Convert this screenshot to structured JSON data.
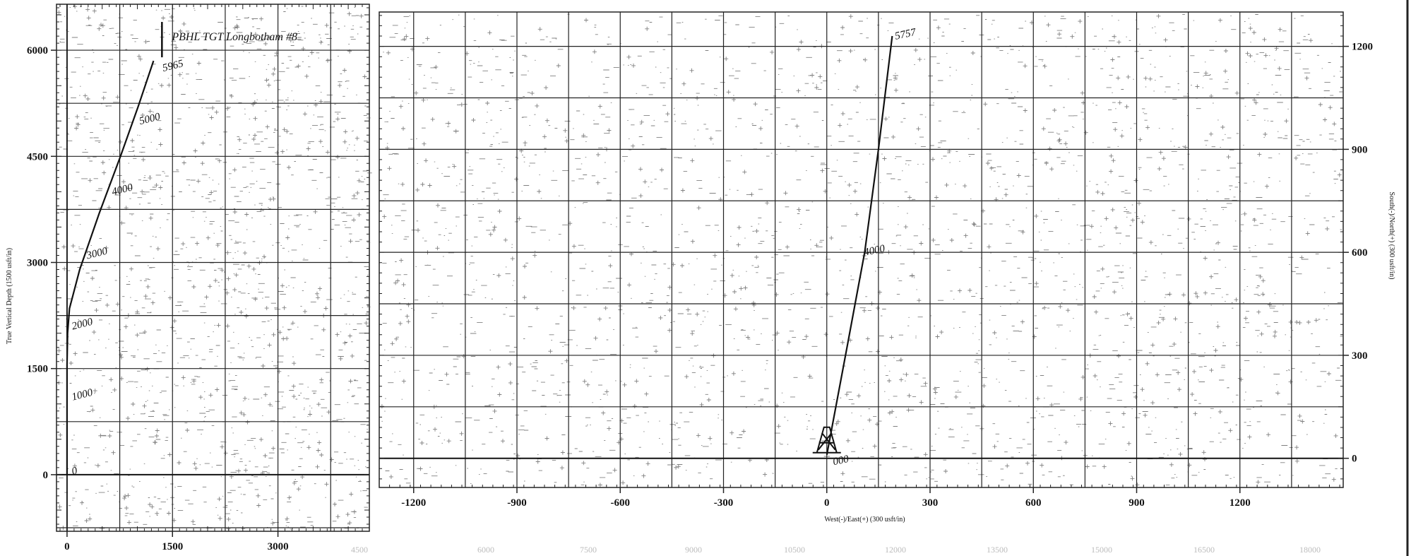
{
  "chart_data": [
    {
      "id": "vertical-section",
      "type": "line",
      "xlabel": "",
      "ylabel": "True Vertical Depth (1500 usft/in)",
      "xlim": [
        -150,
        4300
      ],
      "ylim": [
        6650,
        -800
      ],
      "x_ticks": [
        "0",
        "1500",
        "3000"
      ],
      "y_ticks": [
        "0",
        "1500",
        "3000",
        "4500",
        "6000"
      ],
      "series": [
        {
          "points": [
            {
              "x": 0,
              "y": 0
            },
            {
              "x": 0,
              "y": 1000
            },
            {
              "x": 0,
              "y": 1550
            },
            {
              "x": 8,
              "y": 2000
            },
            {
              "x": 35,
              "y": 2350
            },
            {
              "x": 180,
              "y": 2900
            },
            {
              "x": 460,
              "y": 3700
            },
            {
              "x": 760,
              "y": 4500
            },
            {
              "x": 1010,
              "y": 5200
            },
            {
              "x": 1230,
              "y": 5850
            }
          ]
        }
      ],
      "depth_labels": [
        {
          "text": "0",
          "x": 80,
          "y": 0
        },
        {
          "text": "1000",
          "x": 80,
          "y": 1050
        },
        {
          "text": "2000",
          "x": 80,
          "y": 2050
        },
        {
          "text": "3000",
          "x": 290,
          "y": 3050
        },
        {
          "text": "4000",
          "x": 650,
          "y": 3950
        },
        {
          "text": "5000",
          "x": 1040,
          "y": 4950
        },
        {
          "text": "5965",
          "x": 1370,
          "y": 5700
        }
      ],
      "target": {
        "label": "PBHL TGT Longbotham #8",
        "x": 1350,
        "y": 6200
      }
    },
    {
      "id": "plan-view",
      "type": "line",
      "xlabel": "West(-)/East(+) (300 usft/in)",
      "ylabel": "South(-)/North(+) (300 usft/in)",
      "xlim": [
        -1300,
        1500
      ],
      "ylim": [
        -85,
        1300
      ],
      "x_ticks": [
        "-1200",
        "-900",
        "-600",
        "-300",
        "0",
        "300",
        "600",
        "900",
        "1200"
      ],
      "y_ticks": [
        "0",
        "300",
        "600",
        "900",
        "1200"
      ],
      "series": [
        {
          "points": [
            {
              "x": 0,
              "y": 10
            },
            {
              "x": 60,
              "y": 330
            },
            {
              "x": 110,
              "y": 600
            },
            {
              "x": 150,
              "y": 900
            },
            {
              "x": 190,
              "y": 1230
            }
          ]
        }
      ],
      "depth_labels": [
        {
          "text": "5757",
          "x": 200,
          "y": 1220
        },
        {
          "text": "4000",
          "x": 110,
          "y": 590
        },
        {
          "text": "000",
          "x": 20,
          "y": -20
        }
      ]
    }
  ],
  "faint_bottom_labels": [
    "4500",
    "6000",
    "7500",
    "9000",
    "10500",
    "12000",
    "13500",
    "15000",
    "16500",
    "18000"
  ]
}
